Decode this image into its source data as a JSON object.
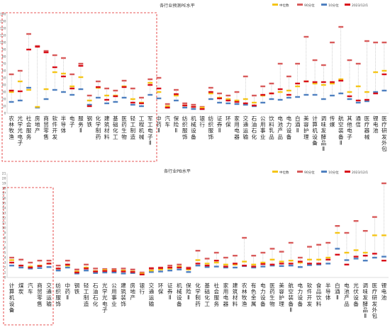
{
  "legend": {
    "items": [
      {
        "key": "median",
        "label": "中位数",
        "color": "#f5c518"
      },
      {
        "key": "p90",
        "label": "90分位",
        "color": "#d85b5b"
      },
      {
        "key": "p10",
        "label": "10分位",
        "color": "#4f80c0"
      },
      {
        "key": "current",
        "label": "2023/12/1",
        "color": "#d9101a"
      }
    ]
  },
  "chart_data": [
    {
      "type": "range-marker",
      "title": "各行业预测PE水平",
      "ylim": [
        0,
        140
      ],
      "yticks": [
        0,
        10,
        20,
        30,
        40,
        50,
        60,
        70,
        80,
        90,
        100,
        110,
        120,
        130,
        140
      ],
      "categories": [
        "农林牧渔",
        "光学光电子",
        "社会服务",
        "房地产",
        "商贸零售",
        "软件开发",
        "半导体",
        "电子",
        "服务Ⅱ",
        "钢铁",
        "化学制药",
        "建筑材料",
        "基础化工",
        "医药生物",
        "轻工制造",
        "工程机械",
        "军工电子Ⅱ",
        "中药Ⅱ",
        "汽车",
        "保险Ⅱ",
        "纺织服饰",
        "机械设备",
        "银行",
        "纺织服饰",
        "证券Ⅱ",
        "环保",
        "家用电器",
        "交通运输",
        "石油石化",
        "公用事业",
        "饮料乳品",
        "电池产品",
        "电力设备",
        "白酒Ⅱ",
        "美容护理",
        "计算机设备",
        "调味发酵品Ⅱ",
        "传媒",
        "航空装备Ⅱ",
        "其他电子",
        "通信",
        "医疗器械",
        "锂电池",
        "医疗研发外包"
      ],
      "series": [
        {
          "name": "中位数",
          "values": [
            30,
            45,
            33,
            9,
            34,
            58,
            56,
            38,
            51,
            18,
            36,
            25,
            25,
            38,
            20,
            15,
            43,
            30,
            10,
            25,
            11,
            9,
            8,
            28,
            22,
            20,
            18,
            20,
            15,
            25,
            28,
            30,
            32,
            38,
            45,
            42,
            40,
            42,
            48,
            30,
            38,
            30,
            58,
            60
          ]
        },
        {
          "name": "90分位",
          "values": [
            55,
            60,
            112,
            95,
            88,
            82,
            78,
            55,
            70,
            25,
            45,
            35,
            32,
            46,
            35,
            22,
            48,
            50,
            13,
            33,
            14,
            12,
            9,
            36,
            28,
            25,
            30,
            52,
            25,
            38,
            42,
            70,
            52,
            70,
            108,
            75,
            68,
            100,
            122,
            75,
            70,
            102,
            100,
            100
          ]
        },
        {
          "name": "10分位",
          "values": [
            16,
            18,
            36,
            8,
            20,
            33,
            30,
            26,
            34,
            12,
            22,
            14,
            16,
            22,
            12,
            10,
            26,
            21,
            8,
            18,
            8,
            6,
            6,
            20,
            15,
            14,
            13,
            12,
            10,
            15,
            20,
            19,
            22,
            23,
            26,
            26,
            20,
            25,
            28,
            20,
            15,
            17,
            30,
            32
          ]
        },
        {
          "name": "2023/12/1",
          "values": [
            32,
            31,
            90,
            94,
            86,
            65,
            52,
            35,
            67,
            10,
            37,
            19,
            24,
            37,
            15,
            14,
            40,
            35,
            8,
            27,
            11,
            9,
            6,
            30,
            21,
            18,
            16,
            14,
            11,
            26,
            28,
            34,
            26,
            42,
            45,
            44,
            44,
            44,
            46,
            24,
            18,
            19,
            28,
            55
          ]
        }
      ]
    },
    {
      "type": "range-marker",
      "title": "各行业PB水平",
      "ylim": [
        0,
        21
      ],
      "yticks": [
        0,
        1,
        2,
        3,
        4,
        5,
        6,
        7,
        8,
        9,
        10,
        11,
        12,
        13,
        14,
        15,
        16,
        17,
        18,
        19,
        20,
        21
      ],
      "categories": [
        "计算机设备",
        "煤炭",
        "汽车",
        "商贸零售",
        "交通运输",
        "纺织服饰",
        "中药Ⅱ",
        "钢铁",
        "轻工制造",
        "石油石化",
        "光学光电子",
        "公用事业",
        "建筑装饰",
        "房地产",
        "银行",
        "交通运输",
        "环保",
        "证券Ⅱ",
        "机械设备",
        "保险Ⅱ",
        "化学制药",
        "基础化工",
        "社会服务",
        "家用电器",
        "建筑材料",
        "农林牧渔",
        "有色金属",
        "电力设备",
        "医药生物",
        "美容护理",
        "航空装备Ⅱ",
        "电力设备",
        "软件开发",
        "食品饮料",
        "半导体",
        "白酒Ⅱ",
        "电池产品",
        "光伏设备",
        "调味发酵品Ⅱ",
        "医疗研发外包",
        "锂电池"
      ],
      "series": [
        {
          "name": "中位数",
          "values": [
            3.5,
            2.4,
            2.2,
            2.4,
            2.8,
            1.8,
            2.4,
            1.2,
            2.0,
            1.3,
            1.5,
            1.4,
            1.4,
            1.2,
            0.8,
            1.4,
            1.6,
            1.8,
            2.2,
            1.6,
            3.5,
            2.8,
            3.0,
            2.6,
            2.6,
            3.2,
            2.6,
            3.0,
            3.6,
            3.2,
            3.4,
            3.0,
            3.6,
            3.6,
            4.0,
            9.0,
            5.0,
            5.5,
            5.0,
            8.5,
            8.5
          ]
        },
        {
          "name": "90分位",
          "values": [
            4.0,
            3.6,
            3.0,
            3.4,
            3.4,
            2.4,
            3.4,
            1.6,
            2.6,
            1.8,
            1.7,
            1.7,
            1.8,
            1.6,
            1.0,
            1.9,
            2.0,
            2.4,
            2.6,
            2.0,
            5.4,
            3.8,
            5.0,
            4.0,
            4.4,
            8.0,
            4.4,
            5.0,
            5.8,
            5.2,
            7.0,
            4.0,
            6.2,
            6.6,
            7.0,
            10.4,
            9.0,
            11.4,
            9.4,
            12.2,
            19.0
          ]
        },
        {
          "name": "10分位",
          "values": [
            2.4,
            2.0,
            1.8,
            1.9,
            2.1,
            1.4,
            2.0,
            0.8,
            1.4,
            0.9,
            1.0,
            1.0,
            0.8,
            0.9,
            0.6,
            1.1,
            1.2,
            1.4,
            1.6,
            1.1,
            2.4,
            2.1,
            2.2,
            2.0,
            2.0,
            2.3,
            2.0,
            2.2,
            2.4,
            2.3,
            2.4,
            2.1,
            2.5,
            2.6,
            2.8,
            5.8,
            3.5,
            3.8,
            3.4,
            4.0,
            4.2
          ]
        },
        {
          "name": "2023/12/1",
          "values": [
            3.0,
            2.4,
            2.0,
            2.3,
            2.8,
            1.8,
            2.6,
            1.0,
            1.8,
            1.2,
            1.3,
            1.3,
            1.2,
            1.1,
            0.6,
            1.8,
            1.9,
            2.0,
            2.0,
            1.8,
            2.8,
            2.4,
            3.4,
            2.2,
            2.8,
            2.4,
            2.2,
            2.7,
            2.6,
            2.8,
            2.8,
            3.2,
            2.8,
            2.8,
            3.6,
            4.6,
            2.6,
            4.2,
            4.4,
            4.8,
            3.4
          ]
        }
      ]
    }
  ]
}
